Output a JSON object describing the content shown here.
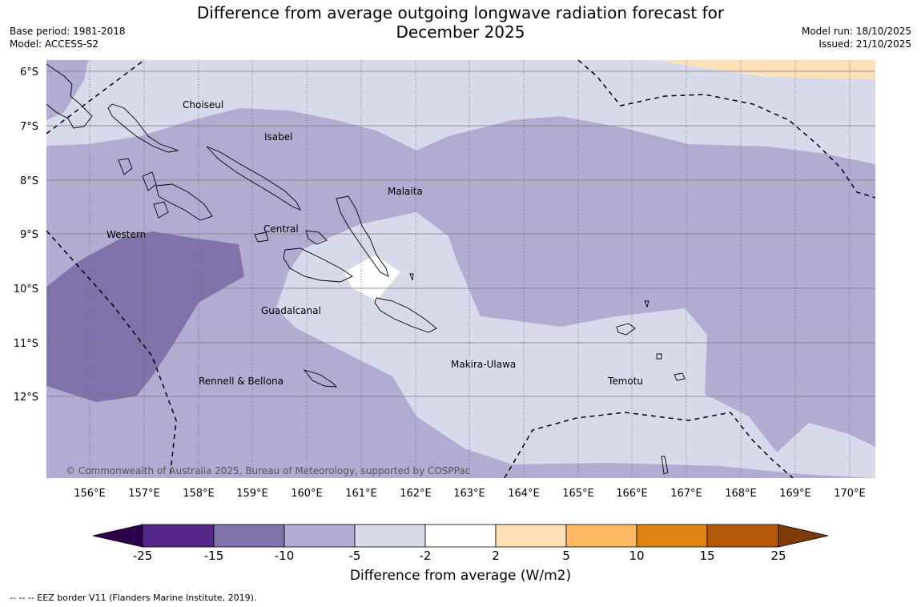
{
  "title": {
    "line1": "Difference from average outgoing longwave radiation forecast for",
    "line2": "December 2025"
  },
  "meta": {
    "base_period": "Base period: 1981-2018",
    "model": "Model: ACCESS-S2",
    "model_run": "Model run: 18/10/2025",
    "issued": "Issued: 21/10/2025"
  },
  "map": {
    "lon_labels": [
      "156°E",
      "157°E",
      "158°E",
      "159°E",
      "160°E",
      "161°E",
      "162°E",
      "163°E",
      "164°E",
      "165°E",
      "166°E",
      "167°E",
      "168°E",
      "169°E",
      "170°E"
    ],
    "lat_labels": [
      "6°S",
      "7°S",
      "8°S",
      "9°S",
      "10°S",
      "11°S",
      "12°S"
    ],
    "regions": [
      "Choiseul",
      "Isabel",
      "Malaita",
      "Western",
      "Central",
      "Guadalcanal",
      "Makira-Ulawa",
      "Temotu",
      "Rennell & Bellona"
    ],
    "copyright": "© Commonwealth of Australia 2025, Bureau of Meteorology, supported by COSPPac"
  },
  "colorbar": {
    "ticks": [
      "-25",
      "-15",
      "-10",
      "-5",
      "-2",
      "2",
      "5",
      "10",
      "15",
      "25"
    ],
    "colors": {
      "below": "#2d004b",
      "b_m25_m15": "#542788",
      "b_m15_m10": "#8073ac",
      "b_m10_m5": "#b2abd2",
      "b_m5_m2": "#d8daeb",
      "b_m2_2": "#ffffff",
      "b_2_5": "#fee0b6",
      "b_5_10": "#fdb863",
      "b_10_15": "#e08214",
      "b_15_25": "#b35806",
      "above": "#7f3b08"
    },
    "label": "Difference from average (W/m2)"
  },
  "footer": "--  --  -- EEZ border V11 (Flanders Marine Institute, 2019)."
}
